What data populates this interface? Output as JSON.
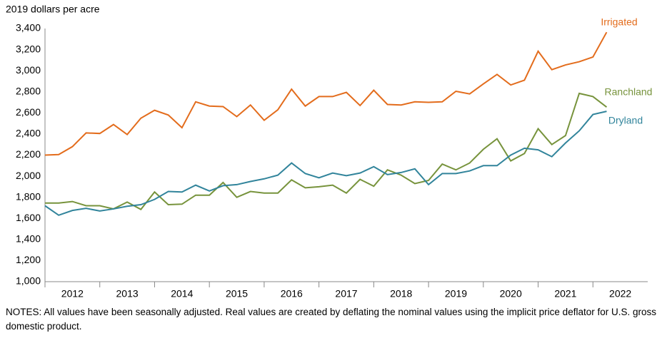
{
  "chart_data": {
    "type": "line",
    "y_axis_label": "2019 dollars per acre",
    "x": [
      2012,
      2012.25,
      2012.5,
      2012.75,
      2013,
      2013.25,
      2013.5,
      2013.75,
      2014,
      2014.25,
      2014.5,
      2014.75,
      2015,
      2015.25,
      2015.5,
      2015.75,
      2016,
      2016.25,
      2016.5,
      2016.75,
      2017,
      2017.25,
      2017.5,
      2017.75,
      2018,
      2018.25,
      2018.5,
      2018.75,
      2019,
      2019.25,
      2019.5,
      2019.75,
      2020,
      2020.25,
      2020.5,
      2020.75,
      2021,
      2021.25,
      2021.5,
      2021.75,
      2022,
      2022.25
    ],
    "xlim": [
      2012,
      2023
    ],
    "xticks": [
      {
        "value": 2012.5,
        "label": "2012"
      },
      {
        "value": 2013.5,
        "label": "2013"
      },
      {
        "value": 2014.5,
        "label": "2014"
      },
      {
        "value": 2015.5,
        "label": "2015"
      },
      {
        "value": 2016.5,
        "label": "2016"
      },
      {
        "value": 2017.5,
        "label": "2017"
      },
      {
        "value": 2018.5,
        "label": "2018"
      },
      {
        "value": 2019.5,
        "label": "2019"
      },
      {
        "value": 2020.5,
        "label": "2020"
      },
      {
        "value": 2021.5,
        "label": "2021"
      },
      {
        "value": 2022.5,
        "label": "2022"
      }
    ],
    "ylim": [
      1000,
      3400
    ],
    "yticks": [
      {
        "value": 1000,
        "label": "1,000"
      },
      {
        "value": 1200,
        "label": "1,200"
      },
      {
        "value": 1400,
        "label": "1,400"
      },
      {
        "value": 1600,
        "label": "1,600"
      },
      {
        "value": 1800,
        "label": "1,800"
      },
      {
        "value": 2000,
        "label": "2,000"
      },
      {
        "value": 2200,
        "label": "2,200"
      },
      {
        "value": 2400,
        "label": "2,400"
      },
      {
        "value": 2600,
        "label": "2,600"
      },
      {
        "value": 2800,
        "label": "2,800"
      },
      {
        "value": 3000,
        "label": "3,000"
      },
      {
        "value": 3200,
        "label": "3,200"
      },
      {
        "value": 3400,
        "label": "3,400"
      }
    ],
    "series": [
      {
        "name": "Irrigated",
        "color": "#e36c1c",
        "values": [
          2200,
          2205,
          2280,
          2410,
          2405,
          2490,
          2395,
          2550,
          2625,
          2580,
          2460,
          2705,
          2665,
          2660,
          2565,
          2675,
          2530,
          2630,
          2825,
          2665,
          2755,
          2755,
          2795,
          2670,
          2815,
          2680,
          2675,
          2705,
          2700,
          2705,
          2805,
          2780,
          2875,
          2965,
          2865,
          2910,
          3185,
          3010,
          3055,
          3085,
          3130,
          3365
        ]
      },
      {
        "name": "Ranchland",
        "color": "#77933c",
        "values": [
          1745,
          1745,
          1760,
          1720,
          1720,
          1690,
          1755,
          1685,
          1850,
          1730,
          1735,
          1820,
          1820,
          1940,
          1800,
          1855,
          1840,
          1840,
          1965,
          1890,
          1900,
          1915,
          1840,
          1970,
          1905,
          2060,
          2010,
          1930,
          1960,
          2115,
          2060,
          2125,
          2255,
          2355,
          2145,
          2215,
          2450,
          2300,
          2385,
          2785,
          2755,
          2655
        ]
      },
      {
        "name": "Dryland",
        "color": "#31849b",
        "values": [
          1720,
          1630,
          1675,
          1695,
          1670,
          1690,
          1715,
          1730,
          1780,
          1855,
          1850,
          1915,
          1860,
          1910,
          1920,
          1950,
          1975,
          2010,
          2125,
          2025,
          1985,
          2030,
          2005,
          2030,
          2090,
          2015,
          2035,
          2070,
          1920,
          2025,
          2025,
          2050,
          2100,
          2100,
          2200,
          2265,
          2250,
          2185,
          2315,
          2430,
          2585,
          2615
        ]
      }
    ],
    "notes": "NOTES: All values have been seasonally adjusted. Real values are created by deflating the nominal values using the implicit price deflator for U.S. gross domestic product."
  }
}
